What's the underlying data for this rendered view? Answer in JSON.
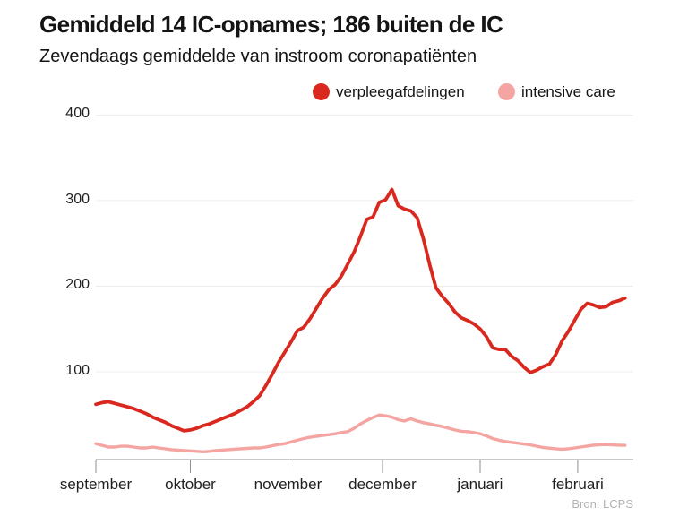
{
  "header": {
    "title": "Gemiddeld 14 IC-opnames; 186 buiten de IC",
    "subtitle": "Zevendaags gemiddelde van instroom coronapatiënten"
  },
  "legend": {
    "items": [
      {
        "label": "verpleegafdelingen",
        "color": "#d9291f"
      },
      {
        "label": "intensive care",
        "color": "#f4a5a1"
      }
    ]
  },
  "source": "Bron: LCPS",
  "chart_data": {
    "type": "line",
    "title": "Gemiddeld 14 IC-opnames; 186 buiten de IC",
    "subtitle": "Zevendaags gemiddelde van instroom coronapatiënten",
    "xlabel": "",
    "ylabel": "",
    "ylim": [
      0,
      420
    ],
    "grid": "horizontal",
    "legend_position": "top",
    "y_ticks": [
      400,
      300,
      200,
      100
    ],
    "x_tick_labels": [
      "september",
      "oktober",
      "november",
      "december",
      "januari",
      "februari"
    ],
    "x_ticks_days": [
      0,
      30,
      61,
      91,
      122,
      153
    ],
    "x_start": "1 september",
    "x_end": "medio februari",
    "day_step": 2,
    "series": [
      {
        "name": "verpleegafdelingen",
        "color": "#d9291f",
        "end_value": 186,
        "values": [
          62,
          64,
          65,
          63,
          61,
          59,
          57,
          54,
          51,
          47,
          44,
          41,
          37,
          34,
          31,
          32,
          34,
          37,
          39,
          42,
          45,
          48,
          51,
          55,
          59,
          65,
          72,
          84,
          97,
          111,
          123,
          135,
          148,
          152,
          162,
          174,
          186,
          196,
          202,
          212,
          226,
          240,
          258,
          278,
          281,
          298,
          301,
          313,
          294,
          290,
          288,
          280,
          255,
          225,
          198,
          188,
          180,
          170,
          163,
          160,
          156,
          150,
          141,
          128,
          126,
          126,
          118,
          113,
          105,
          99,
          102,
          106,
          109,
          120,
          136,
          147,
          160,
          173,
          180,
          178,
          175,
          176,
          181,
          183,
          186
        ]
      },
      {
        "name": "intensive care",
        "color": "#f4a5a1",
        "end_value": 14,
        "values": [
          16,
          14,
          12,
          12,
          13,
          13,
          12,
          11,
          11,
          12,
          11,
          10,
          9,
          8.5,
          8,
          7.5,
          7,
          6.5,
          7,
          8,
          8.5,
          9,
          9.5,
          10,
          10.5,
          11,
          11,
          12,
          13.5,
          15,
          16,
          18,
          20,
          22,
          23.5,
          24.5,
          25.5,
          26.5,
          27.5,
          29,
          30,
          34,
          39,
          43,
          46.5,
          49.5,
          48.5,
          47,
          44,
          42.5,
          45,
          42.5,
          40.5,
          39,
          37.5,
          36,
          34,
          32,
          30.5,
          30,
          29,
          27.5,
          25,
          22,
          20,
          18.5,
          17.5,
          16.5,
          15.5,
          14.5,
          13,
          11.5,
          10.8,
          10,
          9.5,
          10,
          11,
          12,
          13.2,
          14.2,
          14.8,
          15,
          14.5,
          14.2,
          14
        ]
      }
    ],
    "source": "Bron: LCPS",
    "axis_color": "#8f8f8f",
    "gridline_color": "#ececec"
  }
}
